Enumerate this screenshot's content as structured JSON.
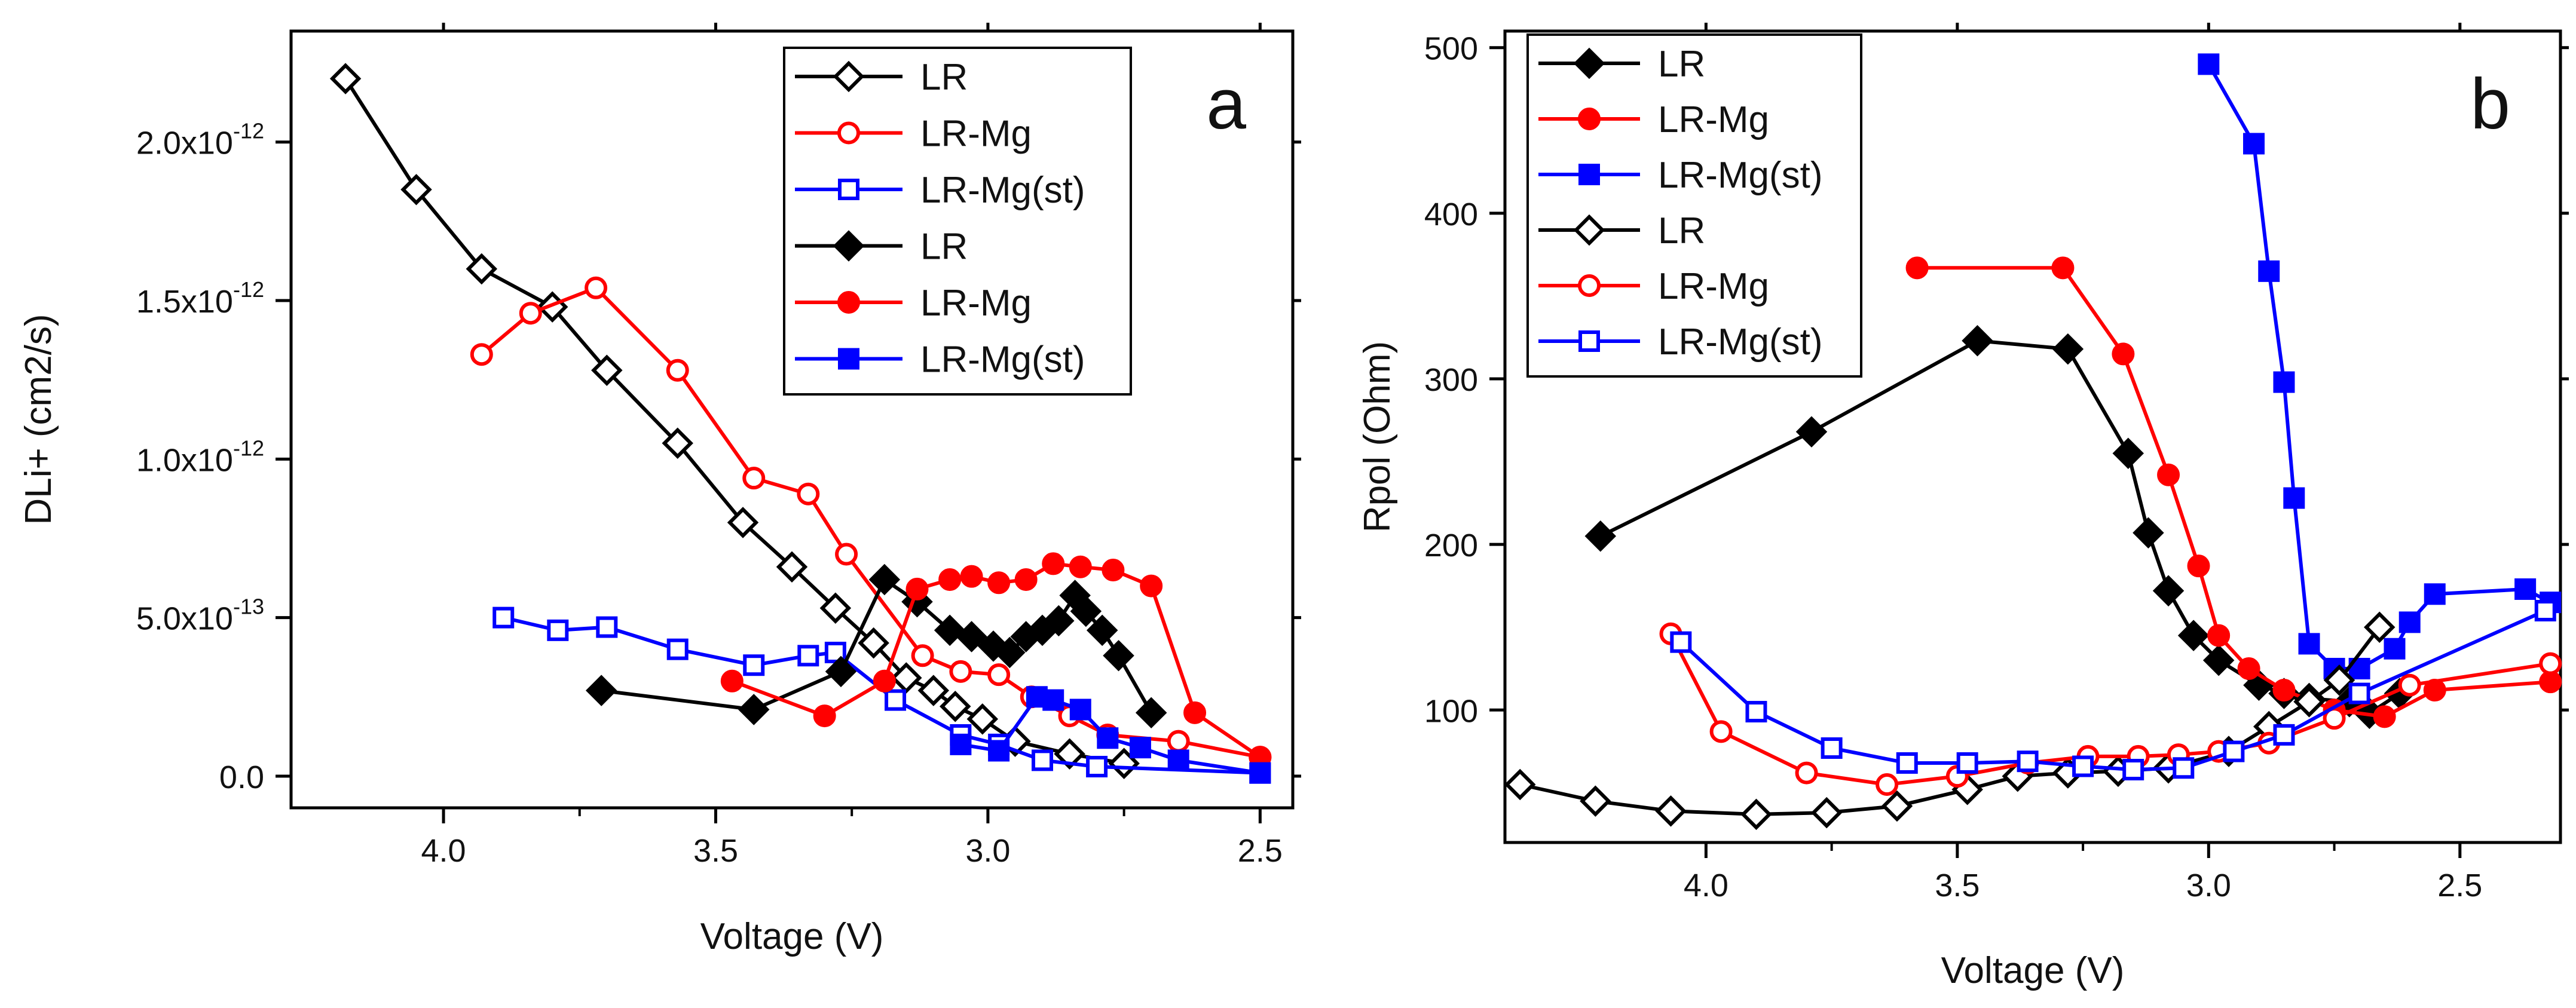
{
  "chart_data": [
    {
      "id": "a",
      "type": "line",
      "panel_label": "a",
      "xlabel": "Voltage (V)",
      "ylabel": "DLi+ (cm2/s)",
      "xlim": [
        4.28,
        2.44
      ],
      "ylim": [
        -1e-13,
        2.35e-12
      ],
      "xticks": [
        {
          "value": 4.0,
          "label": "4.0"
        },
        {
          "value": 3.5,
          "label": "3.5"
        },
        {
          "value": 3.0,
          "label": "3.0"
        },
        {
          "value": 2.5,
          "label": "2.5"
        }
      ],
      "yticks": [
        {
          "value": 0,
          "label": "0.0",
          "exp": ""
        },
        {
          "value": 5e-13,
          "label": "5.0x10",
          "exp": "-13"
        },
        {
          "value": 1e-12,
          "label": "1.0x10",
          "exp": "-12"
        },
        {
          "value": 1.5e-12,
          "label": "1.5x10",
          "exp": "-12"
        },
        {
          "value": 2e-12,
          "label": "2.0x10",
          "exp": "-12"
        }
      ],
      "legend": {
        "placement": "top-right"
      },
      "series": [
        {
          "name": "LR",
          "color": "#000000",
          "marker": "diamond",
          "filled": false,
          "points": [
            [
              4.18,
              2.2e-12
            ],
            [
              4.05,
              1.85e-12
            ],
            [
              3.93,
              1.6e-12
            ],
            [
              3.8,
              1.48e-12
            ],
            [
              3.7,
              1.28e-12
            ],
            [
              3.57,
              1.05e-12
            ],
            [
              3.45,
              8e-13
            ],
            [
              3.36,
              6.6e-13
            ],
            [
              3.28,
              5.3e-13
            ],
            [
              3.21,
              4.2e-13
            ],
            [
              3.15,
              3.1e-13
            ],
            [
              3.1,
              2.7e-13
            ],
            [
              3.06,
              2.2e-13
            ],
            [
              3.01,
              1.8e-13
            ],
            [
              2.95,
              1.1e-13
            ],
            [
              2.85,
              7e-14
            ],
            [
              2.75,
              4e-14
            ]
          ]
        },
        {
          "name": "LR-Mg",
          "color": "#ff0000",
          "marker": "circle",
          "filled": false,
          "points": [
            [
              3.93,
              1.33e-12
            ],
            [
              3.84,
              1.46e-12
            ],
            [
              3.72,
              1.54e-12
            ],
            [
              3.57,
              1.28e-12
            ],
            [
              3.43,
              9.4e-13
            ],
            [
              3.33,
              8.9e-13
            ],
            [
              3.26,
              7e-13
            ],
            [
              3.12,
              3.8e-13
            ],
            [
              3.05,
              3.3e-13
            ],
            [
              2.98,
              3.2e-13
            ],
            [
              2.92,
              2.5e-13
            ],
            [
              2.85,
              1.9e-13
            ],
            [
              2.78,
              1.3e-13
            ],
            [
              2.65,
              1.1e-13
            ],
            [
              2.5,
              6e-14
            ]
          ]
        },
        {
          "name": "LR-Mg(st)",
          "color": "#0000ff",
          "marker": "square",
          "filled": false,
          "points": [
            [
              3.89,
              5e-13
            ],
            [
              3.79,
              4.6e-13
            ],
            [
              3.7,
              4.7e-13
            ],
            [
              3.57,
              4e-13
            ],
            [
              3.43,
              3.5e-13
            ],
            [
              3.33,
              3.8e-13
            ],
            [
              3.28,
              3.9e-13
            ],
            [
              3.17,
              2.4e-13
            ],
            [
              3.05,
              1.3e-13
            ],
            [
              2.98,
              1e-13
            ],
            [
              2.9,
              5e-14
            ],
            [
              2.8,
              3e-14
            ],
            [
              2.5,
              1e-14
            ]
          ]
        },
        {
          "name": "LR",
          "color": "#000000",
          "marker": "diamond",
          "filled": true,
          "points": [
            [
              3.71,
              2.7e-13
            ],
            [
              3.43,
              2.1e-13
            ],
            [
              3.27,
              3.3e-13
            ],
            [
              3.19,
              6.2e-13
            ],
            [
              3.13,
              5.5e-13
            ],
            [
              3.07,
              4.6e-13
            ],
            [
              3.03,
              4.4e-13
            ],
            [
              2.99,
              4.1e-13
            ],
            [
              2.96,
              3.9e-13
            ],
            [
              2.93,
              4.4e-13
            ],
            [
              2.9,
              4.6e-13
            ],
            [
              2.87,
              4.9e-13
            ],
            [
              2.84,
              5.7e-13
            ],
            [
              2.82,
              5.2e-13
            ],
            [
              2.79,
              4.6e-13
            ],
            [
              2.76,
              3.8e-13
            ],
            [
              2.7,
              2e-13
            ]
          ]
        },
        {
          "name": "LR-Mg",
          "color": "#ff0000",
          "marker": "circle",
          "filled": true,
          "points": [
            [
              3.47,
              3e-13
            ],
            [
              3.3,
              1.9e-13
            ],
            [
              3.19,
              3e-13
            ],
            [
              3.13,
              5.9e-13
            ],
            [
              3.07,
              6.2e-13
            ],
            [
              3.03,
              6.3e-13
            ],
            [
              2.98,
              6.1e-13
            ],
            [
              2.93,
              6.2e-13
            ],
            [
              2.88,
              6.7e-13
            ],
            [
              2.83,
              6.6e-13
            ],
            [
              2.77,
              6.5e-13
            ],
            [
              2.7,
              6e-13
            ],
            [
              2.62,
              2e-13
            ],
            [
              2.5,
              6e-14
            ]
          ]
        },
        {
          "name": "LR-Mg(st)",
          "color": "#0000ff",
          "marker": "square",
          "filled": true,
          "points": [
            [
              3.05,
              1e-13
            ],
            [
              2.98,
              8e-14
            ],
            [
              2.91,
              2.5e-13
            ],
            [
              2.88,
              2.4e-13
            ],
            [
              2.83,
              2.1e-13
            ],
            [
              2.78,
              1.2e-13
            ],
            [
              2.72,
              9e-14
            ],
            [
              2.65,
              5e-14
            ],
            [
              2.5,
              1e-14
            ]
          ]
        }
      ]
    },
    {
      "id": "b",
      "type": "line",
      "panel_label": "b",
      "xlabel": "Voltage (V)",
      "ylabel": "Rpol (Ohm)",
      "xlim": [
        4.4,
        2.3
      ],
      "ylim": [
        20,
        510
      ],
      "xticks": [
        {
          "value": 4.0,
          "label": "4.0"
        },
        {
          "value": 3.5,
          "label": "3.5"
        },
        {
          "value": 3.0,
          "label": "3.0"
        },
        {
          "value": 2.5,
          "label": "2.5"
        }
      ],
      "yticks": [
        {
          "value": 100,
          "label": "100",
          "exp": ""
        },
        {
          "value": 200,
          "label": "200",
          "exp": ""
        },
        {
          "value": 300,
          "label": "300",
          "exp": ""
        },
        {
          "value": 400,
          "label": "400",
          "exp": ""
        },
        {
          "value": 500,
          "label": "500",
          "exp": ""
        }
      ],
      "legend": {
        "placement": "top-left"
      },
      "series": [
        {
          "name": "LR",
          "color": "#000000",
          "marker": "diamond",
          "filled": true,
          "points": [
            [
              4.21,
              205
            ],
            [
              3.79,
              268
            ],
            [
              3.46,
              323
            ],
            [
              3.28,
              318
            ],
            [
              3.16,
              255
            ],
            [
              3.12,
              207
            ],
            [
              3.08,
              172
            ],
            [
              3.03,
              145
            ],
            [
              2.98,
              130
            ],
            [
              2.9,
              115
            ],
            [
              2.85,
              110
            ],
            [
              2.8,
              107
            ],
            [
              2.72,
              105
            ],
            [
              2.68,
              98
            ],
            [
              2.62,
              110
            ]
          ]
        },
        {
          "name": "LR-Mg",
          "color": "#ff0000",
          "marker": "circle",
          "filled": true,
          "points": [
            [
              3.58,
              367
            ],
            [
              3.29,
              367
            ],
            [
              3.17,
              315
            ],
            [
              3.08,
              242
            ],
            [
              3.02,
              187
            ],
            [
              2.98,
              145
            ],
            [
              2.92,
              125
            ],
            [
              2.85,
              112
            ],
            [
              2.75,
              100
            ],
            [
              2.65,
              96
            ],
            [
              2.55,
              112
            ],
            [
              2.32,
              117
            ]
          ]
        },
        {
          "name": "LR-Mg(st)",
          "color": "#0000ff",
          "marker": "square",
          "filled": true,
          "points": [
            [
              3.0,
              490
            ],
            [
              2.91,
              442
            ],
            [
              2.88,
              365
            ],
            [
              2.85,
              298
            ],
            [
              2.83,
              228
            ],
            [
              2.8,
              140
            ],
            [
              2.75,
              125
            ],
            [
              2.7,
              125
            ],
            [
              2.63,
              137
            ],
            [
              2.6,
              153
            ],
            [
              2.55,
              170
            ],
            [
              2.37,
              173
            ],
            [
              2.32,
              165
            ]
          ]
        },
        {
          "name": "LR",
          "color": "#000000",
          "marker": "diamond",
          "filled": false,
          "points": [
            [
              4.37,
              55
            ],
            [
              4.22,
              45
            ],
            [
              4.07,
              39
            ],
            [
              3.9,
              37
            ],
            [
              3.76,
              38
            ],
            [
              3.62,
              42
            ],
            [
              3.48,
              52
            ],
            [
              3.38,
              60
            ],
            [
              3.28,
              62
            ],
            [
              3.18,
              63
            ],
            [
              3.08,
              65
            ],
            [
              2.96,
              75
            ],
            [
              2.88,
              90
            ],
            [
              2.8,
              105
            ],
            [
              2.74,
              118
            ],
            [
              2.66,
              150
            ]
          ]
        },
        {
          "name": "LR-Mg",
          "color": "#ff0000",
          "marker": "circle",
          "filled": false,
          "points": [
            [
              4.07,
              146
            ],
            [
              3.97,
              87
            ],
            [
              3.8,
              62
            ],
            [
              3.64,
              55
            ],
            [
              3.5,
              60
            ],
            [
              3.36,
              68
            ],
            [
              3.24,
              72
            ],
            [
              3.14,
              72
            ],
            [
              3.06,
              73
            ],
            [
              2.98,
              75
            ],
            [
              2.88,
              80
            ],
            [
              2.75,
              95
            ],
            [
              2.6,
              115
            ],
            [
              2.32,
              128
            ]
          ]
        },
        {
          "name": "LR-Mg(st)",
          "color": "#0000ff",
          "marker": "square",
          "filled": false,
          "points": [
            [
              4.05,
              141
            ],
            [
              3.9,
              99
            ],
            [
              3.75,
              77
            ],
            [
              3.6,
              68
            ],
            [
              3.48,
              68
            ],
            [
              3.36,
              69
            ],
            [
              3.25,
              66
            ],
            [
              3.15,
              64
            ],
            [
              3.05,
              65
            ],
            [
              2.95,
              75
            ],
            [
              2.85,
              85
            ],
            [
              2.7,
              110
            ],
            [
              2.33,
              160
            ]
          ]
        }
      ]
    }
  ]
}
